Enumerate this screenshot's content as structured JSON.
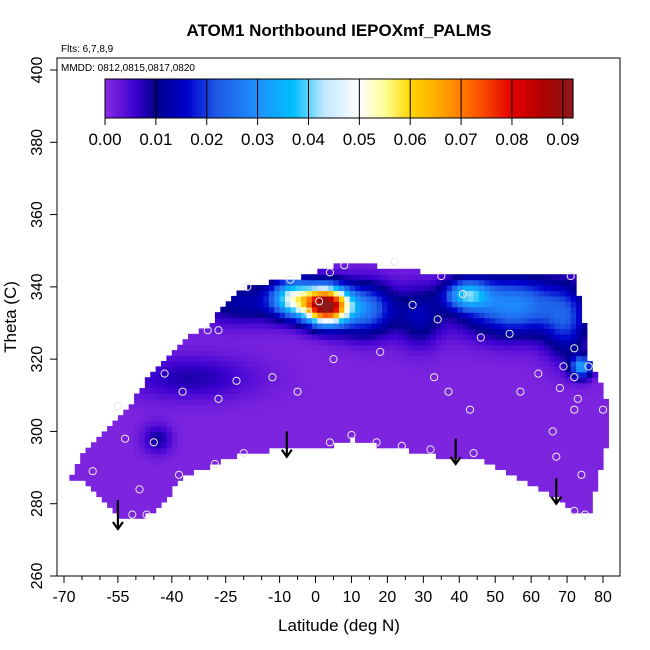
{
  "chart_data": {
    "type": "heatmap",
    "title": "ATOM1 Northbound IEPOXmf_PALMS",
    "flights_note": "Flts: 6,7,8,9",
    "dates_note": "MMDD: 0812,0815,0817,0820",
    "xlabel": "Latitude (deg N)",
    "ylabel": "Theta (C)",
    "xlim": [
      -70,
      85
    ],
    "ylim": [
      260,
      405
    ],
    "x_ticks": [
      -70,
      -55,
      -40,
      -25,
      -10,
      0,
      10,
      20,
      30,
      40,
      50,
      60,
      70,
      80
    ],
    "x_minor_ticks": [
      -65,
      -60,
      -50,
      -45,
      -35,
      -30,
      -20,
      -15,
      -5,
      5,
      15,
      25,
      35,
      45,
      55,
      65,
      75
    ],
    "y_ticks": [
      260,
      280,
      300,
      320,
      340,
      360,
      380,
      400
    ],
    "colorbar": {
      "min": 0.0,
      "max": 0.092,
      "ticks": [
        0.0,
        0.01,
        0.02,
        0.03,
        0.04,
        0.05,
        0.06,
        0.07,
        0.08,
        0.09
      ],
      "tick_labels": [
        "0.00",
        "0.01",
        "0.02",
        "0.03",
        "0.04",
        "0.05",
        "0.06",
        "0.07",
        "0.08",
        "0.09"
      ],
      "stops": [
        {
          "v": 0.0,
          "color": "#8a2be2"
        },
        {
          "v": 0.006,
          "color": "#3a00d0"
        },
        {
          "v": 0.01,
          "color": "#00008b"
        },
        {
          "v": 0.016,
          "color": "#0000cd"
        },
        {
          "v": 0.022,
          "color": "#1e5ae6"
        },
        {
          "v": 0.03,
          "color": "#1e90ff"
        },
        {
          "v": 0.037,
          "color": "#00bfff"
        },
        {
          "v": 0.043,
          "color": "#bfe6ff"
        },
        {
          "v": 0.05,
          "color": "#ffffff"
        },
        {
          "v": 0.055,
          "color": "#ffff99"
        },
        {
          "v": 0.06,
          "color": "#ffd700"
        },
        {
          "v": 0.066,
          "color": "#ffa500"
        },
        {
          "v": 0.072,
          "color": "#ff6600"
        },
        {
          "v": 0.08,
          "color": "#e60000"
        },
        {
          "v": 0.086,
          "color": "#b00000"
        },
        {
          "v": 0.092,
          "color": "#8b1a1a"
        }
      ]
    },
    "grid": false,
    "data_extent": {
      "bottom_boundary": [
        [
          -68,
          287
        ],
        [
          -65,
          286
        ],
        [
          -60,
          282
        ],
        [
          -55,
          277
        ],
        [
          -52,
          276
        ],
        [
          -48,
          276
        ],
        [
          -43,
          279
        ],
        [
          -38,
          287
        ],
        [
          -33,
          289
        ],
        [
          -28,
          291
        ],
        [
          -20,
          294
        ],
        [
          -10,
          295
        ],
        [
          0,
          296
        ],
        [
          5,
          296
        ],
        [
          10,
          298
        ],
        [
          18,
          296
        ],
        [
          25,
          295
        ],
        [
          35,
          293
        ],
        [
          45,
          293
        ],
        [
          55,
          288
        ],
        [
          65,
          283
        ],
        [
          72,
          278
        ],
        [
          76,
          277
        ],
        [
          79,
          289
        ],
        [
          82,
          300
        ],
        [
          82,
          305
        ]
      ],
      "top_boundary": [
        [
          82,
          305
        ],
        [
          79,
          315
        ],
        [
          76,
          320
        ],
        [
          74,
          335
        ],
        [
          72,
          343
        ],
        [
          60,
          344
        ],
        [
          45,
          344
        ],
        [
          35,
          343
        ],
        [
          25,
          345
        ],
        [
          15,
          346
        ],
        [
          5,
          346
        ],
        [
          -2,
          343
        ],
        [
          -8,
          342
        ],
        [
          -15,
          341
        ],
        [
          -22,
          339
        ],
        [
          -30,
          329
        ],
        [
          -36,
          326
        ],
        [
          -42,
          320
        ],
        [
          -48,
          313
        ],
        [
          -52,
          306
        ],
        [
          -58,
          300
        ],
        [
          -62,
          296
        ],
        [
          -66,
          292
        ],
        [
          -68,
          287
        ]
      ]
    },
    "hotspots": [
      {
        "lat": 3,
        "theta": 335,
        "value": 0.09,
        "sx": 6,
        "sy": 5
      },
      {
        "lat": -6,
        "theta": 337,
        "value": 0.04,
        "sx": 6,
        "sy": 5
      },
      {
        "lat": 14,
        "theta": 334,
        "value": 0.025,
        "sx": 8,
        "sy": 7
      },
      {
        "lat": -20,
        "theta": 336,
        "value": 0.012,
        "sx": 14,
        "sy": 6
      },
      {
        "lat": 55,
        "theta": 335,
        "value": 0.028,
        "sx": 14,
        "sy": 8
      },
      {
        "lat": 42,
        "theta": 338,
        "value": 0.03,
        "sx": 6,
        "sy": 4
      },
      {
        "lat": 70,
        "theta": 330,
        "value": 0.015,
        "sx": 6,
        "sy": 10
      },
      {
        "lat": 74,
        "theta": 318,
        "value": 0.03,
        "sx": 3,
        "sy": 3
      },
      {
        "lat": 29,
        "theta": 332,
        "value": 0.012,
        "sx": 6,
        "sy": 8
      },
      {
        "lat": -44,
        "theta": 298,
        "value": 0.008,
        "sx": 4,
        "sy": 4
      },
      {
        "lat": -35,
        "theta": 315,
        "value": 0.007,
        "sx": 18,
        "sy": 6
      }
    ],
    "sample_points": [
      {
        "lat": -55,
        "theta": 307
      },
      {
        "lat": -53,
        "theta": 298
      },
      {
        "lat": -49,
        "theta": 284
      },
      {
        "lat": -45,
        "theta": 297
      },
      {
        "lat": -47,
        "theta": 277
      },
      {
        "lat": -51,
        "theta": 277
      },
      {
        "lat": -62,
        "theta": 289
      },
      {
        "lat": -38,
        "theta": 288
      },
      {
        "lat": -37,
        "theta": 311
      },
      {
        "lat": -42,
        "theta": 316
      },
      {
        "lat": -30,
        "theta": 328
      },
      {
        "lat": -27,
        "theta": 309
      },
      {
        "lat": -28,
        "theta": 291
      },
      {
        "lat": -22,
        "theta": 314
      },
      {
        "lat": -20,
        "theta": 294
      },
      {
        "lat": -12,
        "theta": 315
      },
      {
        "lat": -5,
        "theta": 311
      },
      {
        "lat": -2,
        "theta": 333
      },
      {
        "lat": -19,
        "theta": 340
      },
      {
        "lat": -27,
        "theta": 328
      },
      {
        "lat": -7,
        "theta": 342
      },
      {
        "lat": 1,
        "theta": 336
      },
      {
        "lat": 4,
        "theta": 344
      },
      {
        "lat": 8,
        "theta": 346
      },
      {
        "lat": 5,
        "theta": 320
      },
      {
        "lat": 10,
        "theta": 299
      },
      {
        "lat": 4,
        "theta": 297
      },
      {
        "lat": 17,
        "theta": 297
      },
      {
        "lat": 18,
        "theta": 322
      },
      {
        "lat": 22,
        "theta": 347
      },
      {
        "lat": 24,
        "theta": 296
      },
      {
        "lat": 27,
        "theta": 335
      },
      {
        "lat": 33,
        "theta": 315
      },
      {
        "lat": 34,
        "theta": 331
      },
      {
        "lat": 35,
        "theta": 343
      },
      {
        "lat": 37,
        "theta": 311
      },
      {
        "lat": 32,
        "theta": 295
      },
      {
        "lat": 43,
        "theta": 306
      },
      {
        "lat": 44,
        "theta": 294
      },
      {
        "lat": 41,
        "theta": 338
      },
      {
        "lat": 46,
        "theta": 326
      },
      {
        "lat": 54,
        "theta": 327
      },
      {
        "lat": 57,
        "theta": 311
      },
      {
        "lat": 62,
        "theta": 316
      },
      {
        "lat": 66,
        "theta": 300
      },
      {
        "lat": 67,
        "theta": 293
      },
      {
        "lat": 68,
        "theta": 312
      },
      {
        "lat": 69,
        "theta": 318
      },
      {
        "lat": 72,
        "theta": 315
      },
      {
        "lat": 72,
        "theta": 306
      },
      {
        "lat": 73,
        "theta": 309
      },
      {
        "lat": 74,
        "theta": 288
      },
      {
        "lat": 72,
        "theta": 278
      },
      {
        "lat": 75,
        "theta": 277
      },
      {
        "lat": 72,
        "theta": 323
      },
      {
        "lat": 71,
        "theta": 343
      },
      {
        "lat": 76,
        "theta": 318
      },
      {
        "lat": 80,
        "theta": 306
      }
    ],
    "arrows": [
      {
        "lat": -55,
        "theta_start": 281,
        "theta_end": 273
      },
      {
        "lat": -8,
        "theta_start": 300,
        "theta_end": 293
      },
      {
        "lat": 39,
        "theta_start": 298,
        "theta_end": 291
      },
      {
        "lat": 67,
        "theta_start": 287,
        "theta_end": 280
      }
    ]
  }
}
